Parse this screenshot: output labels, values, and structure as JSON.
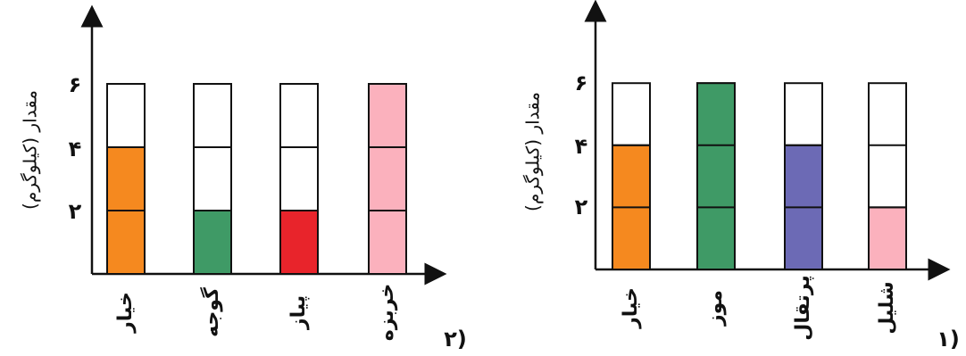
{
  "chart_data": [
    {
      "type": "bar",
      "panel_label": "۲)",
      "ylabel": "مقدار (کیلوگرم)",
      "yticks": [
        "۲",
        "۴",
        "۶"
      ],
      "ylim": [
        0,
        6
      ],
      "categories": [
        "خیار",
        "گوجه",
        "پیاز",
        "خربزه"
      ],
      "values": [
        4,
        2,
        2,
        6
      ],
      "colors": [
        "#f5891f",
        "#3f9a66",
        "#e8242b",
        "#fbb1bd"
      ],
      "capacity": 6
    },
    {
      "type": "bar",
      "panel_label": "۱)",
      "ylabel": "مقدار (کیلوگرم)",
      "yticks": [
        "۲",
        "۴",
        "۶"
      ],
      "ylim": [
        0,
        6
      ],
      "categories": [
        "خیار",
        "موز",
        "پرتقال",
        "شلیل"
      ],
      "values": [
        4,
        6,
        4,
        2
      ],
      "colors": [
        "#f5891f",
        "#3f9a66",
        "#6c6ab5",
        "#fbb1bd"
      ],
      "capacity": 6
    }
  ]
}
